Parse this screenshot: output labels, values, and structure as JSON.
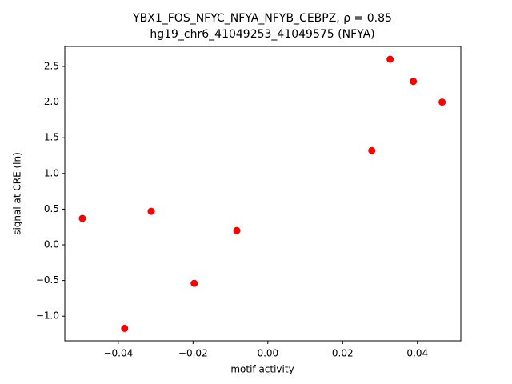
{
  "chart_data": {
    "type": "scatter",
    "title": "YBX1_FOS_NFYC_NFYA_NFYB_CEBPZ, ρ = 0.85",
    "subtitle": "hg19_chr6_41049253_41049575 (NFYA)",
    "x_label": "motif activity",
    "y_label": "signal at CRE (ln)",
    "color": "#ff0000",
    "x": [
      -0.0496,
      -0.0383,
      -0.0312,
      -0.0197,
      -0.0083,
      0.0278,
      0.0327,
      0.0389,
      0.0466
    ],
    "values": [
      0.37,
      -1.17,
      0.47,
      -0.54,
      0.2,
      1.32,
      2.6,
      2.29,
      2.0
    ],
    "xlim": [
      -0.0543,
      0.0516
    ],
    "ylim": [
      -1.345,
      2.78
    ],
    "xticks": [
      {
        "value": -0.04,
        "label": "−0.04"
      },
      {
        "value": -0.02,
        "label": "−0.02"
      },
      {
        "value": 0,
        "label": "0.00"
      },
      0.02,
      0.04
    ],
    "yticks": [
      {
        "value": -1,
        "label": "−1.0"
      },
      {
        "value": -0.5,
        "label": "−0.5"
      },
      {
        "value": 0,
        "label": "0.0"
      },
      0.5,
      {
        "value": 1,
        "label": "1.0"
      },
      1.5,
      {
        "value": 2,
        "label": "2.0"
      },
      2.5
    ],
    "grid": false
  }
}
